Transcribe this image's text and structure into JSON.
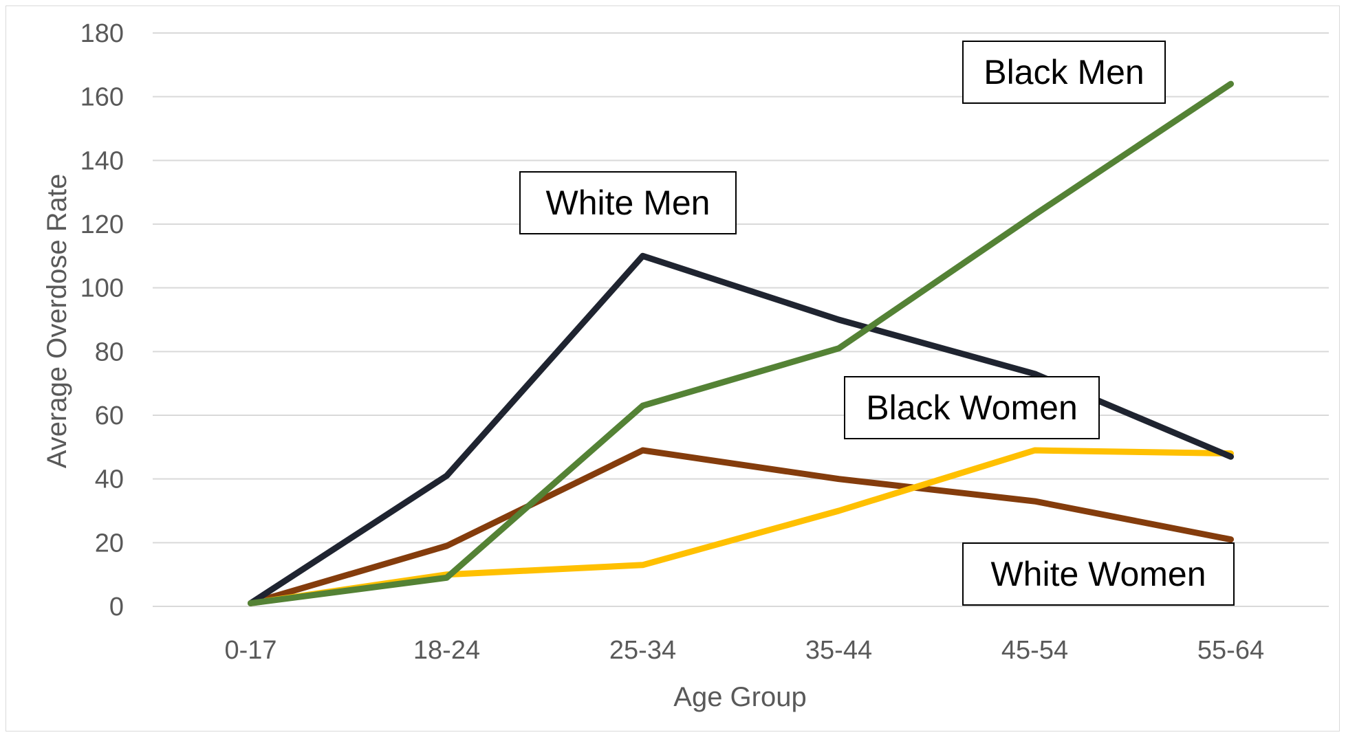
{
  "chart_data": {
    "type": "line",
    "title": "",
    "xlabel": "Age Group",
    "ylabel": "Average Overdose Rate",
    "ylim": [
      0,
      180
    ],
    "yticks": [
      0,
      20,
      40,
      60,
      80,
      100,
      120,
      140,
      160,
      180
    ],
    "categories": [
      "0-17",
      "18-24",
      "25-34",
      "35-44",
      "45-54",
      "55-64"
    ],
    "grid": true,
    "series": [
      {
        "name": "White Men",
        "color": "#1f2430",
        "values": [
          1,
          41,
          110,
          90,
          73,
          47
        ]
      },
      {
        "name": "Black Men",
        "color": "#548235",
        "values": [
          1,
          9,
          63,
          81,
          123,
          164
        ]
      },
      {
        "name": "White Women",
        "color": "#843c0c",
        "values": [
          1,
          19,
          49,
          40,
          33,
          21
        ]
      },
      {
        "name": "Black Women",
        "color": "#ffc000",
        "values": [
          1,
          10,
          13,
          30,
          49,
          48
        ]
      }
    ],
    "annotations": [
      {
        "text": "Black Men",
        "series": "Black Men"
      },
      {
        "text": "White Men",
        "series": "White Men"
      },
      {
        "text": "Black Women",
        "series": "Black Women"
      },
      {
        "text": "White Women",
        "series": "White Women"
      }
    ]
  }
}
